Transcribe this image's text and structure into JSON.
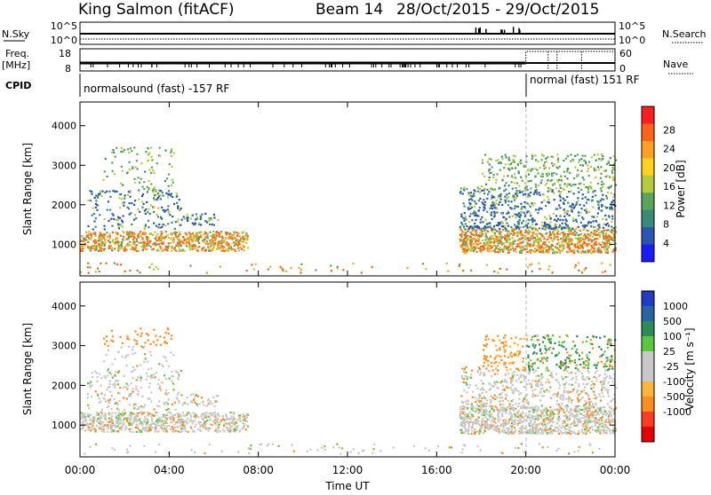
{
  "header": {
    "station": "King Salmon (fitACF)",
    "beam": "Beam 14",
    "dates": "28/Oct/2015 - 29/Oct/2015"
  },
  "strip_labels": {
    "nsky": "N.Sky",
    "nsearch": "N.Search",
    "freq_line1": "Freq.",
    "freq_line2": "[MHz]",
    "nave": "Nave",
    "cpid": "CPID",
    "nsky_top": "10^5",
    "nsky_bottom": "10^0",
    "nsearch_top": "10^5",
    "nsearch_bottom": "10^0",
    "freq_top": "18",
    "freq_bottom": "8",
    "nave_top": "60",
    "nave_bottom": "0"
  },
  "cpid_segments": [
    {
      "label": "normalsound (fast) -157 RF",
      "start_hour": 0,
      "end_hour": 20
    },
    {
      "label": "normal (fast) 151 RF",
      "start_hour": 20,
      "end_hour": 24
    }
  ],
  "chart_data": [
    {
      "type": "heatmap",
      "name": "power",
      "ylabel": "Slant Range [km]",
      "xlabel": "Time UT",
      "x_range_hours": [
        0,
        24
      ],
      "ylim": [
        200,
        4600
      ],
      "y_ticks": [
        1000,
        2000,
        3000,
        4000
      ],
      "x_tick_labels": [
        "00:00",
        "04:00",
        "08:00",
        "12:00",
        "16:00",
        "20:00",
        "00:00"
      ],
      "colorbar_label": "Power [dB]",
      "colorbar_ticks": [
        "4",
        "8",
        "12",
        "16",
        "20",
        "24",
        "28"
      ],
      "colorbar_colors": [
        "#1a1aff",
        "#2a55b4",
        "#3a8a78",
        "#5aa55a",
        "#b4cc3c",
        "#ffd21e",
        "#ffa020",
        "#ff6414",
        "#ff1e1e"
      ]
    },
    {
      "type": "heatmap",
      "name": "velocity",
      "ylabel": "Slant Range [km]",
      "xlabel": "Time UT",
      "x_range_hours": [
        0,
        24
      ],
      "ylim": [
        200,
        4600
      ],
      "y_ticks": [
        1000,
        2000,
        3000,
        4000
      ],
      "x_tick_labels": [
        "00:00",
        "04:00",
        "08:00",
        "12:00",
        "16:00",
        "20:00",
        "00:00"
      ],
      "colorbar_label": "Velocity [m s⁻¹]",
      "colorbar_ticks": [
        "1000",
        "500",
        "100",
        "25",
        "-25",
        "-100",
        "-500",
        "-1000"
      ],
      "colorbar_colors": [
        "#1e3cc8",
        "#2a64a0",
        "#2a8c5a",
        "#5ac83c",
        "#c8c8c8",
        "#c8c8c8",
        "#ffb43c",
        "#ff8c1e",
        "#ff3c1e",
        "#e60000"
      ]
    }
  ],
  "x_axis_title": "Time UT"
}
